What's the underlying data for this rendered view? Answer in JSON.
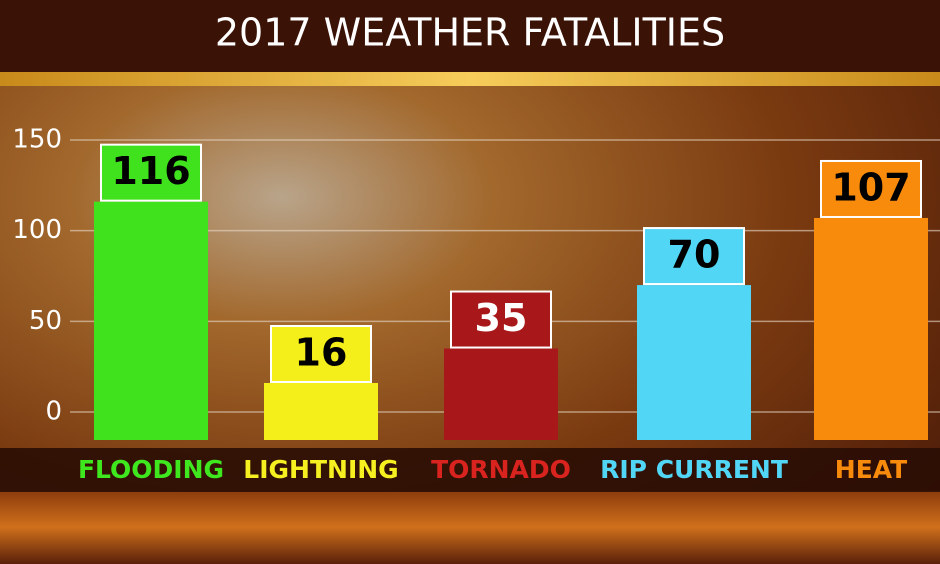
{
  "chart_data": {
    "type": "bar",
    "title": "2017 WEATHER FATALITIES",
    "categories": [
      "FLOODING",
      "LIGHTNING",
      "TORNADO",
      "RIP CURRENT",
      "HEAT"
    ],
    "values": [
      116,
      16,
      35,
      70,
      107
    ],
    "colors": [
      "#3fe21c",
      "#f4ef1a",
      "#a8181a",
      "#52d6f6",
      "#f98b0c"
    ],
    "ylim": [
      0,
      150
    ],
    "yticks": [
      0,
      50,
      100,
      150
    ],
    "grid": true
  }
}
